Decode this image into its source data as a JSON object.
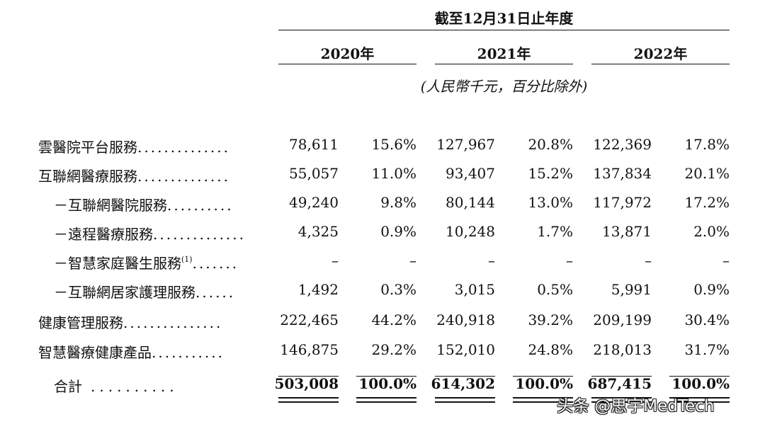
{
  "header": {
    "period": "截至12月31日止年度",
    "years": [
      "2020年",
      "2021年",
      "2022年"
    ],
    "unit": "(人民幣千元，百分比除外)"
  },
  "rows": [
    {
      "label": "雲醫院平台服務",
      "dots": "..............",
      "v": [
        "78,611",
        "15.6%",
        "127,967",
        "20.8%",
        "122,369",
        "17.8%"
      ]
    },
    {
      "label": "互聯網醫療服務",
      "dots": "..............",
      "v": [
        "55,057",
        "11.0%",
        "93,407",
        "15.2%",
        "137,834",
        "20.1%"
      ]
    },
    {
      "label": "－互聯網醫院服務",
      "dots": "..........",
      "v": [
        "49,240",
        "9.8%",
        "80,144",
        "13.0%",
        "117,972",
        "17.2%"
      ]
    },
    {
      "label": "－遠程醫療服務",
      "dots": "..............",
      "v": [
        "4,325",
        "0.9%",
        "10,248",
        "1.7%",
        "13,871",
        "2.0%"
      ]
    },
    {
      "label": "－智慧家庭醫生服務",
      "sup": "(1)",
      "dots": ".......",
      "v": [
        "–",
        "–",
        "–",
        "–",
        "–",
        "–"
      ]
    },
    {
      "label": "－互聯網居家護理服務",
      "dots": "......",
      "v": [
        "1,492",
        "0.3%",
        "3,015",
        "0.5%",
        "5,991",
        "0.9%"
      ]
    },
    {
      "label": "健康管理服務",
      "dots": "...............",
      "v": [
        "222,465",
        "44.2%",
        "240,918",
        "39.2%",
        "209,199",
        "30.4%"
      ]
    },
    {
      "label": "智慧醫療健康產品",
      "dots": "...........",
      "v": [
        "146,875",
        "29.2%",
        "152,010",
        "24.8%",
        "218,013",
        "31.7%"
      ]
    }
  ],
  "total": {
    "label": "合計",
    "dots": "..........",
    "v": [
      "503,008",
      "100.0%",
      "614,302",
      "100.0%",
      "687,415",
      "100.0%"
    ]
  },
  "watermark": "头条 @思宇MedTech"
}
